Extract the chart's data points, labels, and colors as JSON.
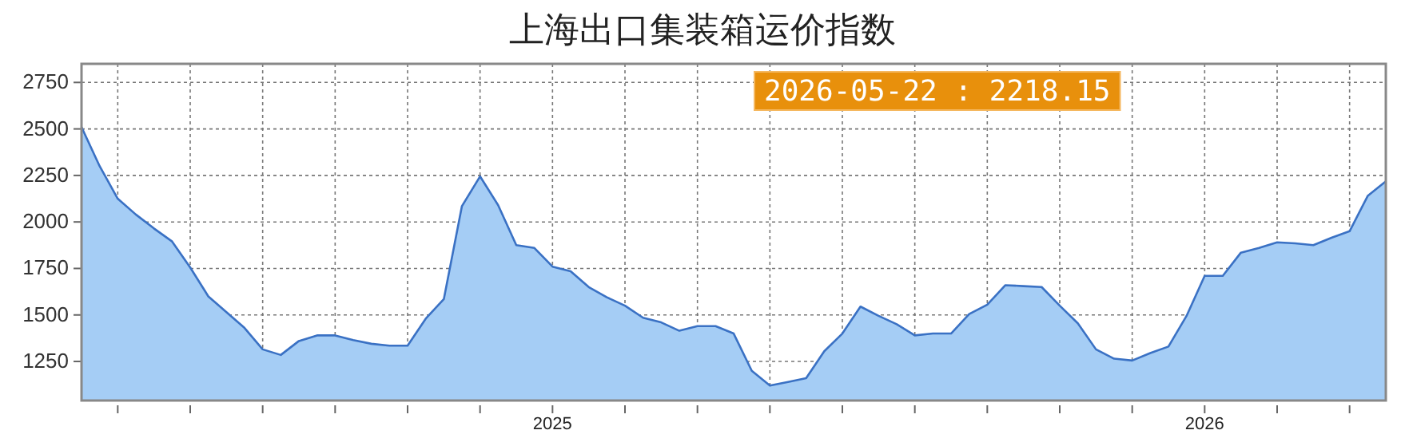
{
  "chart_data": {
    "type": "area",
    "title": "上海出口集装箱运价指数",
    "categories": [
      null,
      null,
      null,
      null,
      null,
      null,
      null,
      null,
      null,
      null,
      null,
      null,
      null,
      null,
      null,
      null,
      null,
      null,
      null,
      null,
      null,
      null,
      null,
      null,
      null,
      null,
      "2025",
      null,
      null,
      null,
      null,
      null,
      null,
      null,
      null,
      null,
      null,
      null,
      null,
      null,
      null,
      null,
      null,
      null,
      null,
      null,
      null,
      null,
      null,
      null,
      null,
      null,
      null,
      null,
      null,
      null,
      null,
      null,
      null,
      null,
      null,
      null,
      "2026",
      null,
      null,
      null,
      null,
      null,
      null,
      null,
      null,
      null,
      null
    ],
    "series": [
      {
        "color": "#a5cdf5",
        "values": [
          2510,
          2300,
          2125,
          2040,
          1965,
          1895,
          1755,
          1600,
          1515,
          1430,
          1315,
          1285,
          1360,
          1390,
          1390,
          1365,
          1345,
          1335,
          1335,
          1480,
          1585,
          2085,
          2245,
          2090,
          1875,
          1860,
          1760,
          1735,
          1650,
          1595,
          1550,
          1485,
          1460,
          1415,
          1440,
          1440,
          1400,
          1200,
          1120,
          1140,
          1160,
          1305,
          1400,
          1545,
          1495,
          1450,
          1390,
          1400,
          1400,
          1505,
          1555,
          1660,
          1655,
          1650,
          1550,
          1455,
          1315,
          1265,
          1255,
          1295,
          1330,
          1495,
          1710,
          1710,
          1835,
          1860,
          1890,
          1885,
          1875,
          1915,
          1950,
          2140,
          2218.15
        ]
      }
    ],
    "ylim": [
      1040,
      2850
    ],
    "yticks": [
      1250,
      1500,
      1750,
      2000,
      2250,
      2500,
      2750
    ],
    "grid": true,
    "annotations": [
      "2026-05-22 : 2218.15"
    ]
  }
}
